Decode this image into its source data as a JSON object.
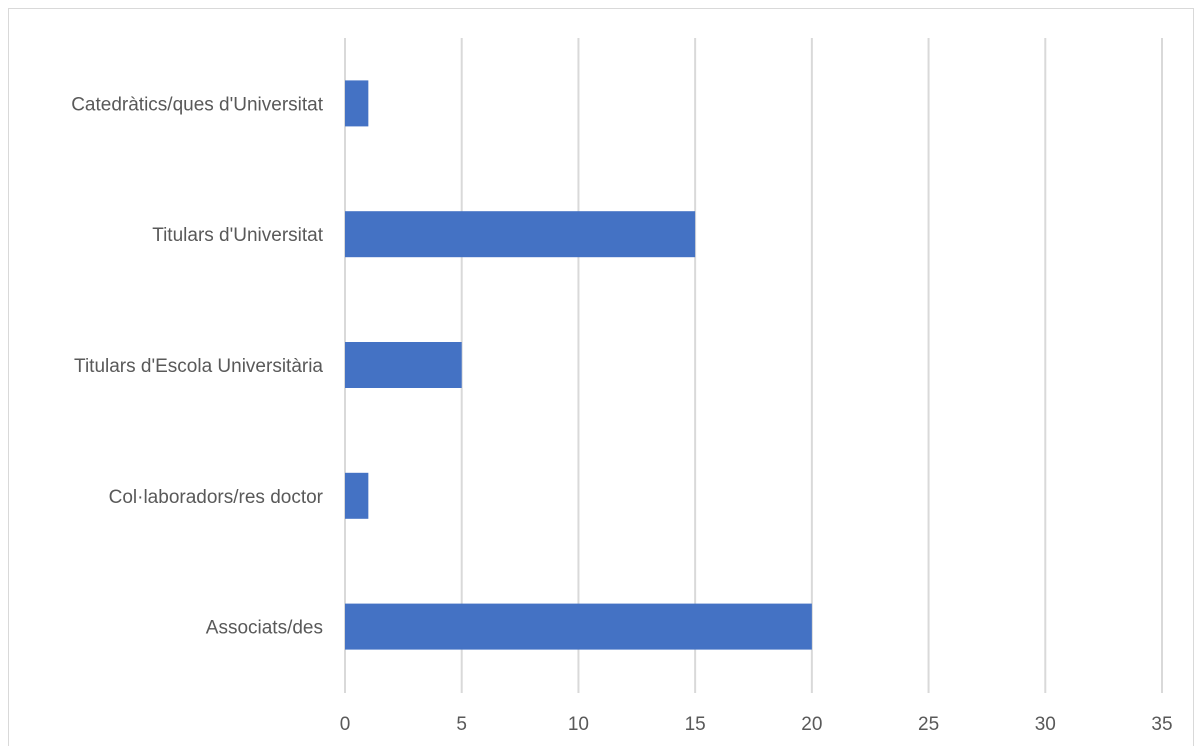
{
  "chart_data": {
    "type": "bar",
    "orientation": "horizontal",
    "categories": [
      "Catedràtics/ques d'Universitat",
      "Titulars d'Universitat",
      "Titulars d'Escola Universitària",
      "Col·laboradors/res doctor",
      "Associats/des"
    ],
    "values": [
      1,
      15,
      5,
      1,
      20
    ],
    "xlim": [
      0,
      35
    ],
    "xticks": [
      "0",
      "5",
      "10",
      "15",
      "20",
      "25",
      "30",
      "35"
    ],
    "xtick_values": [
      0,
      5,
      10,
      15,
      20,
      25,
      30,
      35
    ],
    "grid": "vertical",
    "title": "",
    "xlabel": "",
    "ylabel": "",
    "bar_color": "#4472c4",
    "grid_color": "#d9d9d9"
  }
}
